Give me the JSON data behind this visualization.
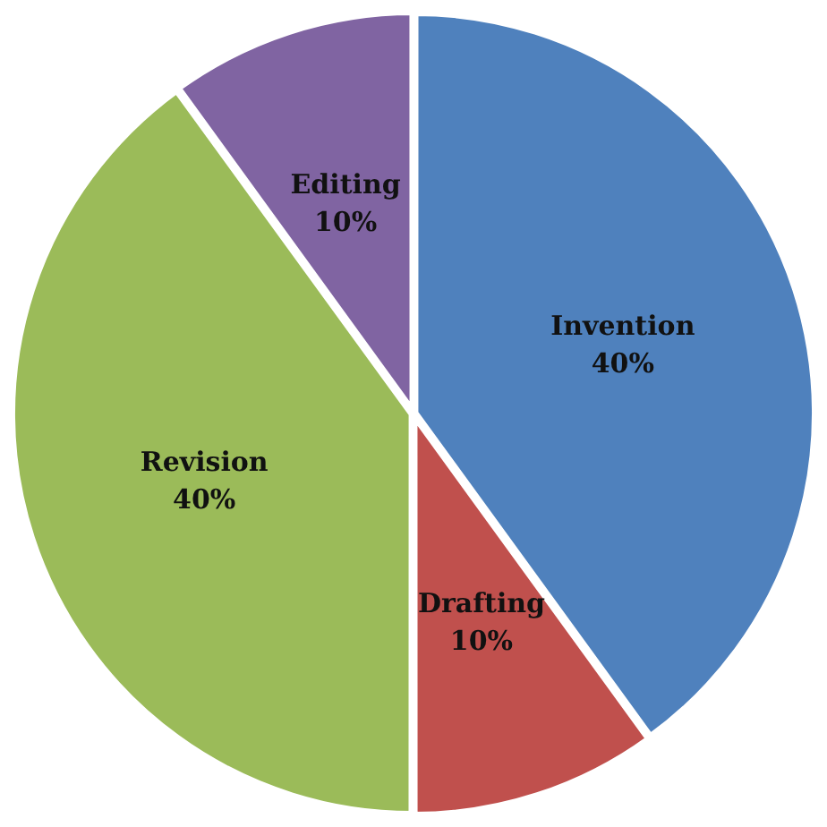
{
  "chart_data": {
    "type": "pie",
    "categories": [
      "Invention",
      "Drafting",
      "Revision",
      "Editing"
    ],
    "values": [
      40,
      10,
      40,
      10
    ],
    "colors": [
      "#4f81bd",
      "#c0504d",
      "#9bbb59",
      "#8064a2"
    ],
    "value_labels": [
      "40%",
      "10%",
      "40%",
      "10%"
    ],
    "legend": false
  }
}
